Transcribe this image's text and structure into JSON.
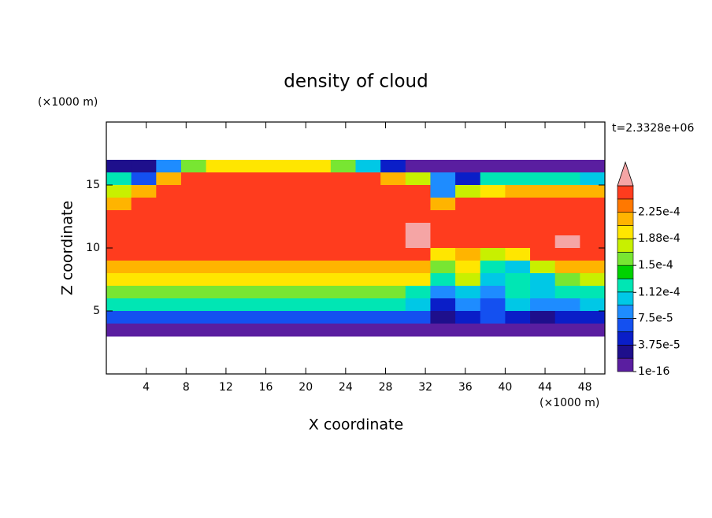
{
  "chart_data": {
    "type": "contour",
    "title": "density of cloud",
    "x_label": "X coordinate",
    "y_label": "Z coordinate",
    "x_unit": "(×1000 m)",
    "y_unit": "(×1000 m)",
    "annotation": "t=2.3328e+06",
    "xlim": [
      0,
      50
    ],
    "ylim": [
      0,
      20
    ],
    "xticks": [
      4,
      8,
      12,
      16,
      20,
      24,
      28,
      32,
      36,
      40,
      44,
      48
    ],
    "yticks": [
      5,
      10,
      15
    ],
    "x": [
      1.25,
      3.75,
      6.25,
      8.75,
      11.25,
      13.75,
      16.25,
      18.75,
      21.25,
      23.75,
      26.25,
      28.75,
      31.25,
      33.75,
      36.25,
      38.75,
      41.25,
      43.75,
      46.25,
      48.75
    ],
    "y": [
      16.5,
      15.5,
      14.5,
      13.5,
      12.5,
      11.5,
      10.5,
      9.5,
      8.5,
      7.5,
      6.5,
      5.5,
      4.5,
      3.5
    ],
    "z": [
      [
        3e-05,
        3e-05,
        8e-05,
        0.00015,
        0.0002,
        0.0002,
        0.0002,
        0.0002,
        0.0002,
        0.00015,
        0.0001,
        5e-05,
        1e-05,
        1e-05,
        1e-05,
        1e-05,
        1e-05,
        1e-05,
        1e-05,
        1e-05
      ],
      [
        0.00012,
        6e-05,
        0.00022,
        0.00025,
        0.00025,
        0.00025,
        0.00025,
        0.00025,
        0.00025,
        0.00025,
        0.00025,
        0.00022,
        0.00018,
        8e-05,
        5e-05,
        0.00012,
        0.00013,
        0.00013,
        0.00012,
        0.0001
      ],
      [
        0.00018,
        0.00022,
        0.00025,
        0.00025,
        0.00025,
        0.00025,
        0.00025,
        0.00025,
        0.00025,
        0.00025,
        0.00025,
        0.00025,
        0.00025,
        9e-05,
        0.00018,
        0.0002,
        0.00022,
        0.00022,
        0.00022,
        0.00022
      ],
      [
        0.00022,
        0.00025,
        0.00025,
        0.00025,
        0.00025,
        0.00025,
        0.00025,
        0.00025,
        0.00025,
        0.00025,
        0.00025,
        0.00025,
        0.00025,
        0.00022,
        0.00025,
        0.00025,
        0.00025,
        0.00025,
        0.00025,
        0.00025
      ],
      [
        0.00025,
        0.00025,
        0.00025,
        0.00025,
        0.00025,
        0.00025,
        0.00025,
        0.00025,
        0.00025,
        0.00025,
        0.00025,
        0.00025,
        0.00025,
        0.00025,
        0.00025,
        0.00025,
        0.00025,
        0.00025,
        0.00025,
        0.00025
      ],
      [
        0.00025,
        0.00025,
        0.00025,
        0.00025,
        0.00025,
        0.00025,
        0.00025,
        0.00025,
        0.00025,
        0.00025,
        0.00025,
        0.00025,
        0.00027,
        0.00025,
        0.00025,
        0.00025,
        0.00025,
        0.00025,
        0.00025,
        0.00025
      ],
      [
        0.00025,
        0.00025,
        0.00025,
        0.00025,
        0.00025,
        0.00025,
        0.00025,
        0.00025,
        0.00025,
        0.00025,
        0.00025,
        0.00025,
        0.00027,
        0.00025,
        0.00025,
        0.00025,
        0.00025,
        0.00025,
        0.00027,
        0.00025
      ],
      [
        0.00025,
        0.00025,
        0.00025,
        0.00025,
        0.00025,
        0.00025,
        0.00025,
        0.00025,
        0.00025,
        0.00025,
        0.00025,
        0.00025,
        0.00025,
        0.0002,
        0.00022,
        0.00018,
        0.0002,
        0.00025,
        0.00025,
        0.00025
      ],
      [
        0.00022,
        0.00022,
        0.00022,
        0.00022,
        0.00022,
        0.00022,
        0.00022,
        0.00022,
        0.00022,
        0.00022,
        0.00022,
        0.00022,
        0.00022,
        0.00016,
        0.0002,
        0.00013,
        0.0001,
        0.00018,
        0.00022,
        0.00022
      ],
      [
        0.0002,
        0.0002,
        0.0002,
        0.0002,
        0.0002,
        0.0002,
        0.0002,
        0.0002,
        0.0002,
        0.0002,
        0.0002,
        0.0002,
        0.00019,
        0.00012,
        0.00018,
        0.0001,
        0.00012,
        0.00011,
        0.00015,
        0.00018
      ],
      [
        0.00016,
        0.00016,
        0.00016,
        0.00016,
        0.00016,
        0.00016,
        0.00016,
        0.00016,
        0.00016,
        0.00016,
        0.00016,
        0.00016,
        0.00013,
        8e-05,
        0.00011,
        9e-05,
        0.00012,
        0.0001,
        0.00012,
        0.00013
      ],
      [
        0.00013,
        0.00013,
        0.00013,
        0.00013,
        0.00013,
        0.00013,
        0.00013,
        0.00013,
        0.00013,
        0.00013,
        0.00013,
        0.00013,
        0.0001,
        5e-05,
        8e-05,
        6e-05,
        0.0001,
        8e-05,
        9e-05,
        0.0001
      ],
      [
        6e-05,
        6e-05,
        6e-05,
        6e-05,
        6e-05,
        6e-05,
        6e-05,
        6e-05,
        6e-05,
        6e-05,
        6e-05,
        6e-05,
        6e-05,
        3e-05,
        5e-05,
        7e-05,
        4e-05,
        2e-05,
        4e-05,
        5e-05
      ],
      [
        1e-05,
        1e-05,
        1e-05,
        1e-05,
        1e-05,
        1e-05,
        1e-05,
        1e-05,
        1e-05,
        1e-05,
        1e-05,
        1e-05,
        1e-05,
        1e-05,
        1e-05,
        1e-05,
        1e-05,
        1e-05,
        1e-05,
        1e-05
      ]
    ],
    "colorbar": {
      "levels": [
        1e-16,
        1.875e-05,
        3.75e-05,
        5.625e-05,
        7.5e-05,
        9.375e-05,
        0.0001125,
        0.00013125,
        0.00015,
        0.00016875,
        0.0001875,
        0.00020625,
        0.000225,
        0.00024375,
        0.0002625
      ],
      "colors": [
        "#5a1ea0",
        "#1e0f8c",
        "#0a1ec8",
        "#1450f0",
        "#1e8cff",
        "#00c8e6",
        "#00e6b4",
        "#00d200",
        "#78e632",
        "#c8f000",
        "#ffe600",
        "#ffb400",
        "#ff7800",
        "#ff3c1e"
      ],
      "extend_color": "#f5a5a5",
      "ticks": [
        1e-16,
        {
          "value": 3.75e-05,
          "label": "3.75e-5"
        },
        {
          "value": 7.5e-05,
          "label": "7.5e-5"
        },
        {
          "value": 0.000112,
          "label": "1.12e-4"
        },
        {
          "value": 0.00015,
          "label": "1.5e-4"
        },
        {
          "value": 0.000188,
          "label": "1.88e-4"
        },
        {
          "value": 0.000225,
          "label": "2.25e-4"
        }
      ]
    }
  }
}
